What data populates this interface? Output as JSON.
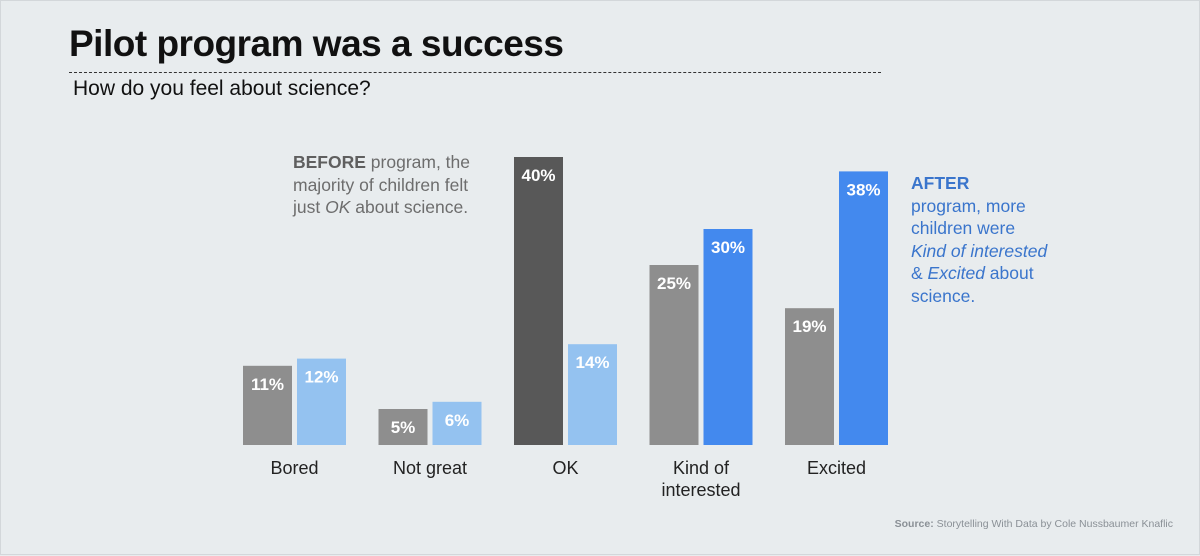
{
  "title": "Pilot program was a success",
  "subtitle": "How do you feel about science?",
  "annotation_before": {
    "strong": "BEFORE",
    "text_1": " program, the majority of children felt just ",
    "emph": "OK",
    "text_2": " about science."
  },
  "annotation_after": {
    "strong": "AFTER",
    "text_1": "program, more children were ",
    "emph_1": "Kind of interested",
    "text_2": " & ",
    "emph_2": "Excited",
    "text_3": " about science."
  },
  "source": {
    "label": "Source:",
    "text": " Storytelling With Data by Cole Nussbaumer Knaflic"
  },
  "colors": {
    "before": "#8e8e8e",
    "before_highlight": "#585858",
    "after": "#94c2f0",
    "after_highlight": "#4389ee"
  },
  "chart_data": {
    "type": "bar",
    "title": "Pilot program was a success",
    "subtitle": "How do you feel about science?",
    "categories": [
      "Bored",
      "Not great",
      "OK",
      "Kind of interested",
      "Excited"
    ],
    "category_lines": [
      [
        "Bored"
      ],
      [
        "Not great"
      ],
      [
        "OK"
      ],
      [
        "Kind of",
        "interested"
      ],
      [
        "Excited"
      ]
    ],
    "series": [
      {
        "name": "Before",
        "values": [
          11,
          5,
          40,
          25,
          19
        ],
        "labels": [
          "11%",
          "5%",
          "40%",
          "25%",
          "19%"
        ]
      },
      {
        "name": "After",
        "values": [
          12,
          6,
          14,
          30,
          38
        ],
        "labels": [
          "12%",
          "6%",
          "14%",
          "30%",
          "38%"
        ]
      }
    ],
    "ylim": [
      0,
      40
    ],
    "unit": "%",
    "xlabel": "",
    "ylabel": "",
    "grid": false,
    "highlight": {
      "before": [
        "OK"
      ],
      "after": [
        "Kind of interested",
        "Excited"
      ]
    }
  }
}
